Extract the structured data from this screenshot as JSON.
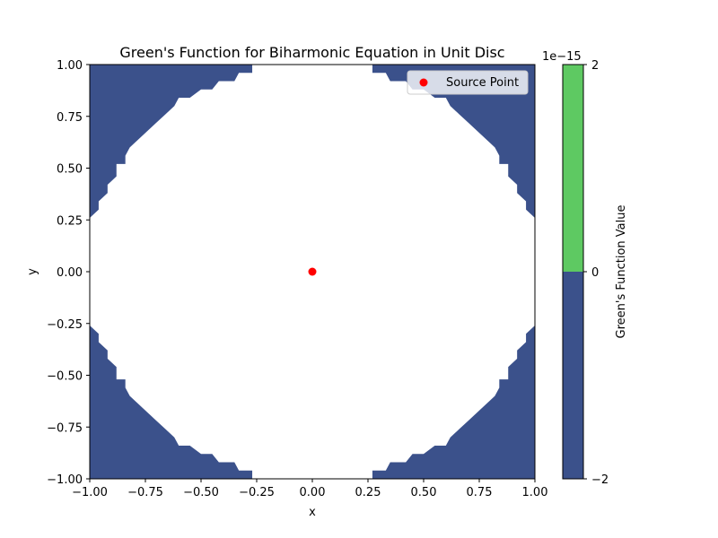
{
  "chart_data": {
    "type": "contourf",
    "title": "Green's Function for Biharmonic Equation in Unit Disc",
    "xlabel": "x",
    "ylabel": "y",
    "xlim": [
      -1.0,
      1.0
    ],
    "ylim": [
      -1.0,
      1.0
    ],
    "x_ticks": [
      "−1.00",
      "−0.75",
      "−0.50",
      "−0.25",
      "0.00",
      "0.25",
      "0.50",
      "0.75",
      "1.00"
    ],
    "y_ticks": [
      "−1.00",
      "−0.75",
      "−0.50",
      "−0.25",
      "0.00",
      "0.25",
      "0.50",
      "0.75",
      "1.00"
    ],
    "filled_regions": [
      {
        "level_range": [
          -2,
          0
        ],
        "scale": "1e-15",
        "color": "#3b518b",
        "region": "outside the white area in the four corners of the square (|x|+|y| region beyond approx r > 0.9)"
      },
      {
        "level_range": [
          0,
          2
        ],
        "scale": "1e-15",
        "color": "#5ec962",
        "region": "none visible"
      },
      {
        "level_range": null,
        "color": "#ffffff",
        "region": "central area left unfilled"
      }
    ],
    "corner_boundary_points": [
      [
        0.27,
        1.0
      ],
      [
        0.27,
        0.96
      ],
      [
        0.33,
        0.96
      ],
      [
        0.35,
        0.92
      ],
      [
        0.42,
        0.92
      ],
      [
        0.45,
        0.88
      ],
      [
        0.5,
        0.88
      ],
      [
        0.55,
        0.84
      ],
      [
        0.6,
        0.84
      ],
      [
        0.62,
        0.8
      ],
      [
        0.66,
        0.76
      ],
      [
        0.7,
        0.72
      ],
      [
        0.74,
        0.68
      ],
      [
        0.78,
        0.64
      ],
      [
        0.82,
        0.6
      ],
      [
        0.84,
        0.56
      ],
      [
        0.84,
        0.52
      ],
      [
        0.88,
        0.52
      ],
      [
        0.88,
        0.46
      ],
      [
        0.92,
        0.42
      ],
      [
        0.92,
        0.38
      ],
      [
        0.96,
        0.34
      ],
      [
        0.96,
        0.3
      ],
      [
        1.0,
        0.26
      ]
    ],
    "source_point": {
      "x": 0.0,
      "y": 0.0,
      "color": "#ff0000"
    },
    "legend": {
      "entries": [
        "Source Point"
      ],
      "position": "upper right"
    },
    "colorbar": {
      "label": "Green's Function Value",
      "scale_label": "1e−15",
      "ticks": [
        "2",
        "0",
        "−2"
      ],
      "levels": [
        -2,
        0,
        2
      ],
      "colors": [
        "#3b518b",
        "#5ec962"
      ]
    }
  }
}
